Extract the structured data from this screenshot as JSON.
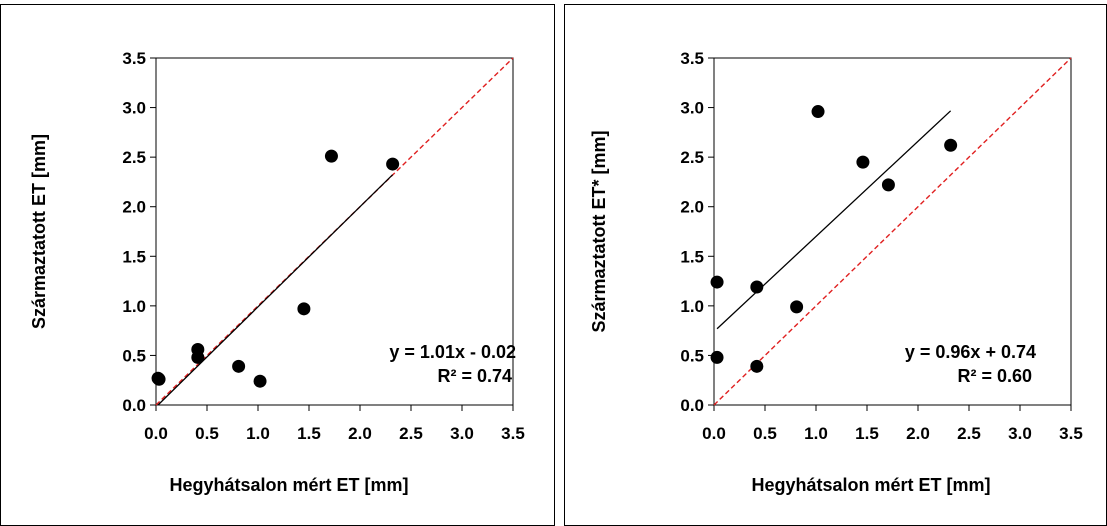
{
  "chart_data": [
    {
      "type": "scatter",
      "xlabel": "Hegyhátsalon mért ET [mm]",
      "ylabel": "Származtatott ET [mm]",
      "xlim": [
        0,
        3.5
      ],
      "ylim": [
        0,
        3.5
      ],
      "xticks": [
        "0.0",
        "0.5",
        "1.0",
        "1.5",
        "2.0",
        "2.5",
        "3.0",
        "3.5"
      ],
      "yticks": [
        "0.0",
        "0.5",
        "1.0",
        "1.5",
        "2.0",
        "2.5",
        "3.0",
        "3.5"
      ],
      "grid": false,
      "points": [
        {
          "x": 0.02,
          "y": 0.27
        },
        {
          "x": 0.03,
          "y": 0.26
        },
        {
          "x": 0.41,
          "y": 0.56
        },
        {
          "x": 0.41,
          "y": 0.48
        },
        {
          "x": 0.81,
          "y": 0.39
        },
        {
          "x": 1.02,
          "y": 0.24
        },
        {
          "x": 1.45,
          "y": 0.97
        },
        {
          "x": 1.72,
          "y": 2.51
        },
        {
          "x": 2.32,
          "y": 2.43
        }
      ],
      "trendline": {
        "slope": 1.01,
        "intercept": -0.02,
        "x_range": [
          0.02,
          2.32
        ]
      },
      "reference_line": {
        "style": "dashed",
        "color": "#e02020",
        "from": [
          0,
          0
        ],
        "to": [
          3.5,
          3.5
        ]
      },
      "equation": "y = 1.01x - 0.02",
      "r2": "R² = 0.74",
      "marker_color": "#000000",
      "trend_color": "#000000"
    },
    {
      "type": "scatter",
      "xlabel": "Hegyhátsalon mért ET [mm]",
      "ylabel": "Származtatott ET* [mm]",
      "xlim": [
        0,
        3.5
      ],
      "ylim": [
        0,
        3.5
      ],
      "xticks": [
        "0.0",
        "0.5",
        "1.0",
        "1.5",
        "2.0",
        "2.5",
        "3.0",
        "3.5"
      ],
      "yticks": [
        "0.0",
        "0.5",
        "1.0",
        "1.5",
        "2.0",
        "2.5",
        "3.0",
        "3.5"
      ],
      "grid": false,
      "points": [
        {
          "x": 0.03,
          "y": 1.24
        },
        {
          "x": 0.03,
          "y": 0.48
        },
        {
          "x": 0.42,
          "y": 1.19
        },
        {
          "x": 0.42,
          "y": 0.39
        },
        {
          "x": 0.81,
          "y": 0.99
        },
        {
          "x": 1.02,
          "y": 2.96
        },
        {
          "x": 1.46,
          "y": 2.45
        },
        {
          "x": 1.71,
          "y": 2.22
        },
        {
          "x": 2.32,
          "y": 2.62
        }
      ],
      "trendline": {
        "slope": 0.96,
        "intercept": 0.74,
        "x_range": [
          0.03,
          2.32
        ]
      },
      "reference_line": {
        "style": "dashed",
        "color": "#e02020",
        "from": [
          0,
          0
        ],
        "to": [
          3.5,
          3.5
        ]
      },
      "equation": "y = 0.96x + 0.74",
      "r2": "R² = 0.60",
      "marker_color": "#000000",
      "trend_color": "#000000"
    }
  ]
}
